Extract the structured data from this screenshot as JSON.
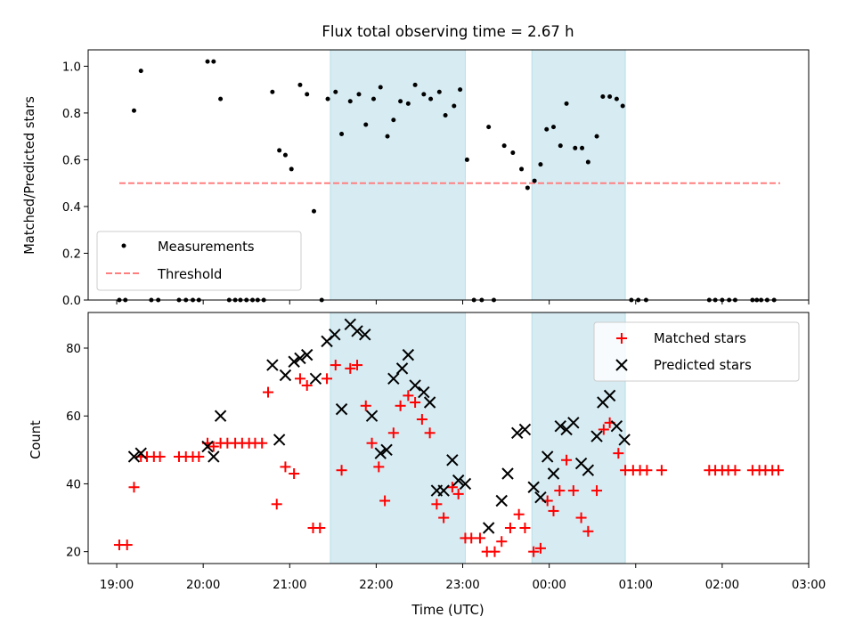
{
  "chart_data": {
    "title": "Flux total observing time = 2.67 h",
    "xlabel": "Time (UTC)",
    "x_unit": "hours",
    "xlim": [
      18.67,
      27.0
    ],
    "xticks": [
      {
        "value": 19,
        "label": "19:00"
      },
      {
        "value": 20,
        "label": "20:00"
      },
      {
        "value": 21,
        "label": "21:00"
      },
      {
        "value": 22,
        "label": "22:00"
      },
      {
        "value": 23,
        "label": "23:00"
      },
      {
        "value": 24,
        "label": "00:00"
      },
      {
        "value": 25,
        "label": "01:00"
      },
      {
        "value": 26,
        "label": "02:00"
      },
      {
        "value": 27,
        "label": "03:00"
      }
    ],
    "shaded_regions": [
      [
        21.47,
        23.03
      ],
      [
        23.8,
        24.88
      ]
    ],
    "shade_color": "#add8e6",
    "panels": [
      {
        "type": "scatter",
        "ylabel": "Matched/Predicted stars",
        "ylim": [
          0,
          1.07
        ],
        "yticks": [
          0.0,
          0.2,
          0.4,
          0.6,
          0.8,
          1.0
        ],
        "yticklabels": [
          "0.0",
          "0.2",
          "0.4",
          "0.6",
          "0.8",
          "1.0"
        ],
        "legend_position": "lower-left",
        "series": [
          {
            "name": "Measurements",
            "marker": "dot",
            "color": "#000000",
            "points": [
              [
                19.03,
                0
              ],
              [
                19.1,
                0
              ],
              [
                19.2,
                0.81
              ],
              [
                19.28,
                0.98
              ],
              [
                19.4,
                0
              ],
              [
                19.48,
                0
              ],
              [
                19.72,
                0
              ],
              [
                19.8,
                0
              ],
              [
                19.88,
                0
              ],
              [
                19.95,
                0
              ],
              [
                20.05,
                1.02
              ],
              [
                20.12,
                1.02
              ],
              [
                20.2,
                0.86
              ],
              [
                20.3,
                0
              ],
              [
                20.37,
                0
              ],
              [
                20.43,
                0
              ],
              [
                20.5,
                0
              ],
              [
                20.57,
                0
              ],
              [
                20.63,
                0
              ],
              [
                20.7,
                0
              ],
              [
                20.8,
                0.89
              ],
              [
                20.88,
                0.64
              ],
              [
                20.95,
                0.62
              ],
              [
                21.02,
                0.56
              ],
              [
                21.12,
                0.92
              ],
              [
                21.2,
                0.88
              ],
              [
                21.28,
                0.38
              ],
              [
                21.37,
                0
              ],
              [
                21.44,
                0.86
              ],
              [
                21.53,
                0.89
              ],
              [
                21.6,
                0.71
              ],
              [
                21.7,
                0.85
              ],
              [
                21.8,
                0.88
              ],
              [
                21.88,
                0.75
              ],
              [
                21.97,
                0.86
              ],
              [
                22.05,
                0.91
              ],
              [
                22.13,
                0.7
              ],
              [
                22.2,
                0.77
              ],
              [
                22.28,
                0.85
              ],
              [
                22.37,
                0.84
              ],
              [
                22.45,
                0.92
              ],
              [
                22.55,
                0.88
              ],
              [
                22.63,
                0.86
              ],
              [
                22.73,
                0.89
              ],
              [
                22.8,
                0.79
              ],
              [
                22.9,
                0.83
              ],
              [
                22.97,
                0.9
              ],
              [
                23.05,
                0.6
              ],
              [
                23.13,
                0
              ],
              [
                23.22,
                0
              ],
              [
                23.3,
                0.74
              ],
              [
                23.36,
                0
              ],
              [
                23.48,
                0.66
              ],
              [
                23.58,
                0.63
              ],
              [
                23.68,
                0.56
              ],
              [
                23.75,
                0.48
              ],
              [
                23.83,
                0.51
              ],
              [
                23.9,
                0.58
              ],
              [
                23.97,
                0.73
              ],
              [
                24.05,
                0.74
              ],
              [
                24.13,
                0.66
              ],
              [
                24.2,
                0.84
              ],
              [
                24.3,
                0.65
              ],
              [
                24.38,
                0.65
              ],
              [
                24.45,
                0.59
              ],
              [
                24.55,
                0.7
              ],
              [
                24.62,
                0.87
              ],
              [
                24.7,
                0.87
              ],
              [
                24.78,
                0.86
              ],
              [
                24.85,
                0.83
              ],
              [
                24.95,
                0
              ],
              [
                25.03,
                0
              ],
              [
                25.12,
                0
              ],
              [
                25.85,
                0
              ],
              [
                25.92,
                0
              ],
              [
                26.0,
                0
              ],
              [
                26.08,
                0
              ],
              [
                26.15,
                0
              ],
              [
                26.35,
                0
              ],
              [
                26.4,
                0
              ],
              [
                26.45,
                0
              ],
              [
                26.52,
                0
              ],
              [
                26.6,
                0
              ]
            ]
          },
          {
            "name": "Threshold",
            "type": "line",
            "style": "dashed",
            "color": "#ff7f7f",
            "points": [
              [
                19.03,
                0.5
              ],
              [
                26.67,
                0.5
              ]
            ]
          }
        ]
      },
      {
        "type": "scatter",
        "ylabel": "Count",
        "ylim": [
          16.5,
          90.5
        ],
        "yticks": [
          20,
          40,
          60,
          80
        ],
        "yticklabels": [
          "20",
          "40",
          "60",
          "80"
        ],
        "legend_position": "upper-right",
        "series": [
          {
            "name": "Matched stars",
            "marker": "plus",
            "color": "#ff0000",
            "points": [
              [
                19.03,
                22
              ],
              [
                19.12,
                22
              ],
              [
                19.2,
                39
              ],
              [
                19.28,
                48
              ],
              [
                19.35,
                48
              ],
              [
                19.43,
                48
              ],
              [
                19.5,
                48
              ],
              [
                19.72,
                48
              ],
              [
                19.8,
                48
              ],
              [
                19.88,
                48
              ],
              [
                19.95,
                48
              ],
              [
                20.05,
                52
              ],
              [
                20.12,
                51
              ],
              [
                20.2,
                52
              ],
              [
                20.28,
                52
              ],
              [
                20.37,
                52
              ],
              [
                20.45,
                52
              ],
              [
                20.53,
                52
              ],
              [
                20.6,
                52
              ],
              [
                20.68,
                52
              ],
              [
                20.75,
                67
              ],
              [
                20.85,
                34
              ],
              [
                20.95,
                45
              ],
              [
                21.05,
                43
              ],
              [
                21.12,
                71
              ],
              [
                21.2,
                69
              ],
              [
                21.27,
                27
              ],
              [
                21.35,
                27
              ],
              [
                21.43,
                71
              ],
              [
                21.53,
                75
              ],
              [
                21.6,
                44
              ],
              [
                21.7,
                74
              ],
              [
                21.78,
                75
              ],
              [
                21.88,
                63
              ],
              [
                21.95,
                52
              ],
              [
                22.03,
                45
              ],
              [
                22.1,
                35
              ],
              [
                22.2,
                55
              ],
              [
                22.28,
                63
              ],
              [
                22.37,
                66
              ],
              [
                22.45,
                64
              ],
              [
                22.53,
                59
              ],
              [
                22.62,
                55
              ],
              [
                22.7,
                34
              ],
              [
                22.78,
                30
              ],
              [
                22.88,
                39
              ],
              [
                22.95,
                37
              ],
              [
                23.03,
                24
              ],
              [
                23.1,
                24
              ],
              [
                23.2,
                24
              ],
              [
                23.28,
                20
              ],
              [
                23.37,
                20
              ],
              [
                23.45,
                23
              ],
              [
                23.55,
                27
              ],
              [
                23.65,
                31
              ],
              [
                23.72,
                27
              ],
              [
                23.82,
                20
              ],
              [
                23.9,
                21
              ],
              [
                23.98,
                35
              ],
              [
                24.05,
                32
              ],
              [
                24.12,
                38
              ],
              [
                24.2,
                47
              ],
              [
                24.28,
                38
              ],
              [
                24.37,
                30
              ],
              [
                24.45,
                26
              ],
              [
                24.55,
                38
              ],
              [
                24.63,
                56
              ],
              [
                24.7,
                58
              ],
              [
                24.8,
                49
              ],
              [
                24.88,
                44
              ],
              [
                24.97,
                44
              ],
              [
                25.05,
                44
              ],
              [
                25.13,
                44
              ],
              [
                25.3,
                44
              ],
              [
                25.85,
                44
              ],
              [
                25.92,
                44
              ],
              [
                26.0,
                44
              ],
              [
                26.07,
                44
              ],
              [
                26.15,
                44
              ],
              [
                26.35,
                44
              ],
              [
                26.43,
                44
              ],
              [
                26.5,
                44
              ],
              [
                26.58,
                44
              ],
              [
                26.65,
                44
              ]
            ]
          },
          {
            "name": "Predicted stars",
            "marker": "x",
            "color": "#000000",
            "points": [
              [
                19.2,
                48
              ],
              [
                19.28,
                49
              ],
              [
                20.05,
                51
              ],
              [
                20.12,
                48
              ],
              [
                20.2,
                60
              ],
              [
                20.8,
                75
              ],
              [
                20.88,
                53
              ],
              [
                20.95,
                72
              ],
              [
                21.05,
                76
              ],
              [
                21.12,
                77
              ],
              [
                21.2,
                78
              ],
              [
                21.3,
                71
              ],
              [
                21.43,
                82
              ],
              [
                21.52,
                84
              ],
              [
                21.6,
                62
              ],
              [
                21.7,
                87
              ],
              [
                21.78,
                85
              ],
              [
                21.87,
                84
              ],
              [
                21.95,
                60
              ],
              [
                22.05,
                49
              ],
              [
                22.12,
                50
              ],
              [
                22.2,
                71
              ],
              [
                22.3,
                74
              ],
              [
                22.37,
                78
              ],
              [
                22.45,
                69
              ],
              [
                22.55,
                67
              ],
              [
                22.62,
                64
              ],
              [
                22.7,
                38
              ],
              [
                22.78,
                38
              ],
              [
                22.88,
                47
              ],
              [
                22.95,
                41
              ],
              [
                23.03,
                40
              ],
              [
                23.3,
                27
              ],
              [
                23.45,
                35
              ],
              [
                23.52,
                43
              ],
              [
                23.63,
                55
              ],
              [
                23.72,
                56
              ],
              [
                23.82,
                39
              ],
              [
                23.9,
                36
              ],
              [
                23.98,
                48
              ],
              [
                24.05,
                43
              ],
              [
                24.13,
                57
              ],
              [
                24.2,
                56
              ],
              [
                24.28,
                58
              ],
              [
                24.37,
                46
              ],
              [
                24.45,
                44
              ],
              [
                24.55,
                54
              ],
              [
                24.62,
                64
              ],
              [
                24.7,
                66
              ],
              [
                24.78,
                57
              ],
              [
                24.87,
                53
              ]
            ]
          }
        ]
      }
    ]
  }
}
